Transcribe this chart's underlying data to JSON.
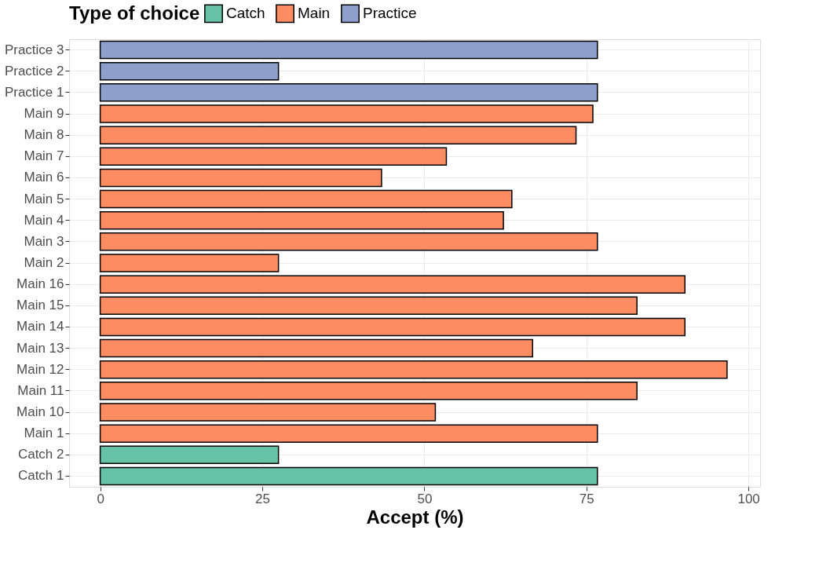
{
  "chart_data": {
    "type": "bar",
    "orientation": "horizontal",
    "xlabel": "Accept (%)",
    "legend_title": "Type of choice",
    "legend": "top",
    "categories": [
      "Practice 3",
      "Practice 2",
      "Practice 1",
      "Main 9",
      "Main 8",
      "Main 7",
      "Main 6",
      "Main 5",
      "Main 4",
      "Main 3",
      "Main 2",
      "Main 16",
      "Main 15",
      "Main 14",
      "Main 13",
      "Main 12",
      "Main 11",
      "Main 10",
      "Main 1",
      "Catch 2",
      "Catch 1"
    ],
    "series": [
      {
        "name": "Catch",
        "color": "#66c2a5",
        "values": [
          null,
          null,
          null,
          null,
          null,
          null,
          null,
          null,
          null,
          null,
          null,
          null,
          null,
          null,
          null,
          null,
          null,
          null,
          null,
          27.5,
          76.7
        ]
      },
      {
        "name": "Main",
        "color": "#fc8d62",
        "values": [
          null,
          null,
          null,
          76.0,
          73.4,
          53.4,
          43.4,
          63.5,
          62.2,
          76.7,
          27.5,
          90.2,
          82.8,
          90.2,
          66.7,
          96.7,
          82.8,
          51.7,
          76.7,
          null,
          null
        ]
      },
      {
        "name": "Practice",
        "color": "#8da0cb",
        "values": [
          76.7,
          27.5,
          76.7,
          null,
          null,
          null,
          null,
          null,
          null,
          null,
          null,
          null,
          null,
          null,
          null,
          null,
          null,
          null,
          null,
          null,
          null
        ]
      }
    ],
    "xlim": [
      -4.8,
      101.8
    ],
    "xticks": [
      0,
      25,
      50,
      75,
      100
    ],
    "grid": true
  }
}
